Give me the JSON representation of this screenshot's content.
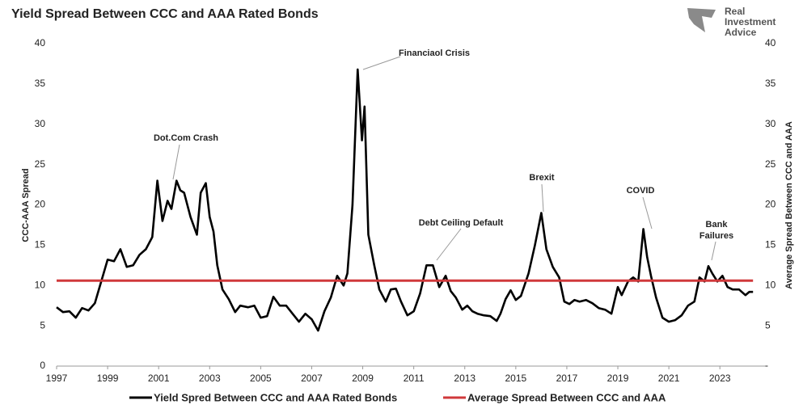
{
  "chart_data": {
    "type": "line",
    "title": "Yield Spread Between CCC and AAA Rated Bonds",
    "logo": [
      "Real",
      "Investment",
      "Advice"
    ],
    "y_label": "CCC-AAA Spread",
    "y2_label": "Average Spread Between CCC and AAA",
    "annotations": [
      [
        "Dot.Com Crash"
      ],
      [
        "Financiaol Crisis"
      ],
      [
        "Debt Ceiling Default"
      ],
      [
        "Brexit"
      ],
      [
        "COVID"
      ],
      [
        "Bank",
        "Failures"
      ]
    ],
    "xlim": [
      1997,
      2024.8
    ],
    "xticks": [
      1997,
      1999,
      2001,
      2003,
      2005,
      2007,
      2009,
      2011,
      2013,
      2015,
      2017,
      2019,
      2021,
      2023
    ],
    "ylim": [
      0,
      40
    ],
    "yticks": [
      0,
      5,
      10,
      15,
      20,
      25,
      30,
      35,
      40
    ],
    "y2lim": [
      0,
      40
    ],
    "y2ticks": [
      {
        "value": 0,
        "label": "-"
      },
      5,
      10,
      15,
      20,
      25,
      30,
      35,
      40
    ],
    "legend": "bottom",
    "x": [
      1997.0,
      1997.25,
      1997.5,
      1997.75,
      1998.0,
      1998.25,
      1998.5,
      1998.75,
      1999.0,
      1999.25,
      1999.5,
      1999.75,
      2000.0,
      2000.25,
      2000.5,
      2000.75,
      2000.95,
      2001.15,
      2001.35,
      2001.5,
      2001.7,
      2001.85,
      2002.0,
      2002.25,
      2002.5,
      2002.65,
      2002.85,
      2003.0,
      2003.15,
      2003.3,
      2003.5,
      2003.75,
      2004.0,
      2004.2,
      2004.5,
      2004.75,
      2005.0,
      2005.25,
      2005.5,
      2005.75,
      2006.0,
      2006.25,
      2006.5,
      2006.75,
      2007.0,
      2007.25,
      2007.5,
      2007.75,
      2008.0,
      2008.25,
      2008.4,
      2008.6,
      2008.8,
      2008.97,
      2009.07,
      2009.22,
      2009.45,
      2009.65,
      2009.9,
      2010.1,
      2010.3,
      2010.5,
      2010.75,
      2011.0,
      2011.25,
      2011.5,
      2011.75,
      2012.0,
      2012.25,
      2012.45,
      2012.65,
      2012.9,
      2013.1,
      2013.3,
      2013.5,
      2013.75,
      2014.0,
      2014.25,
      2014.4,
      2014.6,
      2014.8,
      2015.0,
      2015.2,
      2015.5,
      2015.75,
      2016.0,
      2016.2,
      2016.45,
      2016.7,
      2016.9,
      2017.1,
      2017.3,
      2017.5,
      2017.75,
      2018.0,
      2018.25,
      2018.5,
      2018.75,
      2019.0,
      2019.15,
      2019.4,
      2019.6,
      2019.8,
      2020.0,
      2020.15,
      2020.3,
      2020.5,
      2020.75,
      2021.0,
      2021.25,
      2021.5,
      2021.75,
      2022.0,
      2022.2,
      2022.4,
      2022.55,
      2022.7,
      2022.9,
      2023.1,
      2023.3,
      2023.5,
      2023.75,
      2024.0,
      2024.15,
      2024.3
    ],
    "series": [
      {
        "name": "Yield Spred Between CCC and AAA Rated Bonds",
        "color": "#000000",
        "values": [
          7.3,
          6.7,
          6.8,
          6.0,
          7.2,
          6.9,
          7.8,
          10.5,
          13.2,
          13.0,
          14.5,
          12.3,
          12.5,
          13.8,
          14.5,
          16.0,
          23.0,
          18.0,
          20.5,
          19.5,
          23.0,
          21.8,
          21.5,
          18.5,
          16.3,
          21.5,
          22.7,
          18.5,
          16.7,
          12.5,
          9.5,
          8.3,
          6.7,
          7.5,
          7.3,
          7.5,
          6.0,
          6.2,
          8.6,
          7.5,
          7.5,
          6.5,
          5.5,
          6.5,
          5.8,
          4.4,
          6.8,
          8.5,
          11.2,
          10.0,
          11.5,
          20.0,
          36.8,
          28.0,
          32.2,
          16.3,
          12.5,
          9.5,
          8.0,
          9.5,
          9.6,
          8.0,
          6.3,
          6.8,
          9.0,
          12.5,
          12.5,
          9.8,
          11.2,
          9.3,
          8.5,
          7.0,
          7.5,
          6.8,
          6.5,
          6.3,
          6.2,
          5.6,
          6.5,
          8.3,
          9.4,
          8.2,
          8.7,
          11.5,
          15.0,
          19.0,
          14.5,
          12.3,
          11.0,
          8.0,
          7.7,
          8.2,
          8.0,
          8.2,
          7.8,
          7.2,
          7.0,
          6.5,
          9.8,
          8.8,
          10.5,
          11.0,
          10.5,
          17.0,
          13.5,
          11.2,
          8.5,
          6.0,
          5.5,
          5.7,
          6.3,
          7.5,
          8.0,
          11.0,
          10.5,
          12.4,
          11.5,
          10.5,
          11.2,
          9.8,
          9.5,
          9.5,
          8.8,
          9.2,
          9.2
        ]
      },
      {
        "name": "Average Spread Between CCC and AAA",
        "color": "#d0393b",
        "axis": "y2",
        "values": [
          10.6,
          10.6,
          10.6,
          10.6,
          10.6,
          10.6,
          10.6,
          10.6,
          10.6,
          10.6,
          10.6,
          10.6,
          10.6,
          10.6,
          10.6,
          10.6,
          10.6,
          10.6,
          10.6,
          10.6,
          10.6,
          10.6,
          10.6,
          10.6,
          10.6,
          10.6,
          10.6,
          10.6,
          10.6,
          10.6,
          10.6,
          10.6,
          10.6,
          10.6,
          10.6,
          10.6,
          10.6,
          10.6,
          10.6,
          10.6,
          10.6,
          10.6,
          10.6,
          10.6,
          10.6,
          10.6,
          10.6,
          10.6,
          10.6,
          10.6,
          10.6,
          10.6,
          10.6,
          10.6,
          10.6,
          10.6,
          10.6,
          10.6,
          10.6,
          10.6,
          10.6,
          10.6,
          10.6,
          10.6,
          10.6,
          10.6,
          10.6,
          10.6,
          10.6,
          10.6,
          10.6,
          10.6,
          10.6,
          10.6,
          10.6,
          10.6,
          10.6,
          10.6,
          10.6,
          10.6,
          10.6,
          10.6,
          10.6,
          10.6,
          10.6,
          10.6,
          10.6,
          10.6,
          10.6,
          10.6,
          10.6,
          10.6,
          10.6,
          10.6,
          10.6,
          10.6,
          10.6,
          10.6,
          10.6,
          10.6,
          10.6,
          10.6,
          10.6,
          10.6,
          10.6,
          10.6,
          10.6,
          10.6,
          10.6,
          10.6,
          10.6,
          10.6,
          10.6,
          10.6,
          10.6,
          10.6,
          10.6,
          10.6,
          10.6,
          10.6,
          10.6,
          10.6,
          10.6,
          10.6,
          10.6
        ]
      }
    ]
  }
}
